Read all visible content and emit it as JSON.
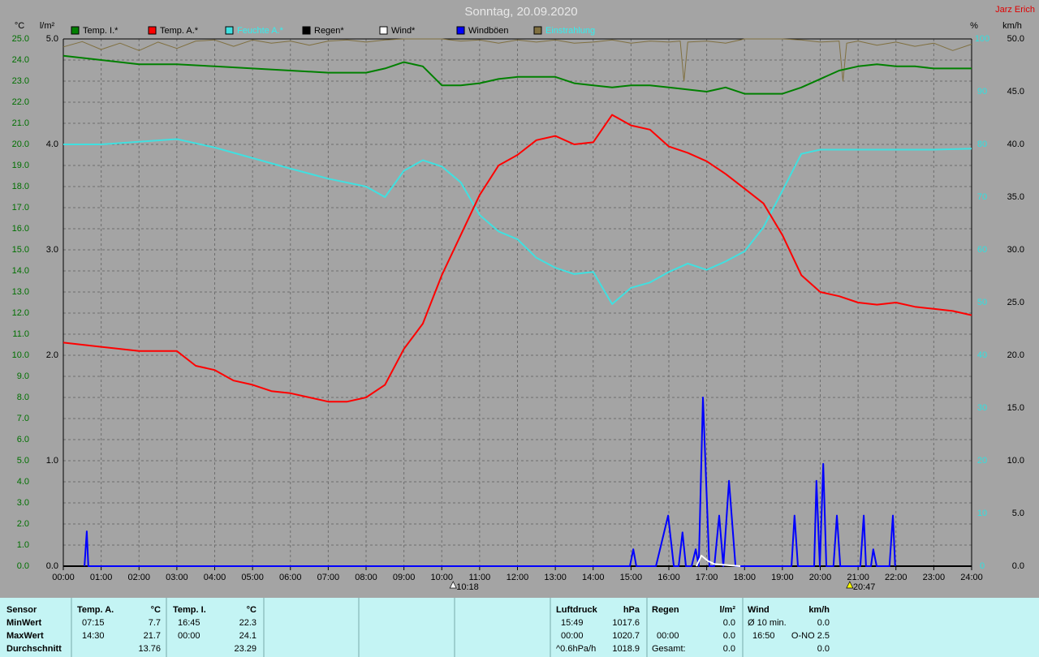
{
  "chart_data": {
    "type": "line",
    "title": "Sonntag, 20.09.2020",
    "author": "Jarz Erich",
    "ylabel": "°C",
    "y3label": "l/m²",
    "y2label": "%",
    "y4label": "km/h",
    "grid": true,
    "xlim": [
      0,
      24
    ],
    "xticks": [
      {
        "value": 0,
        "label": "00:00"
      },
      {
        "value": 1,
        "label": "01:00"
      },
      {
        "value": 2,
        "label": "02:00"
      },
      {
        "value": 3,
        "label": "03:00"
      },
      {
        "value": 4,
        "label": "04:00"
      },
      {
        "value": 5,
        "label": "05:00"
      },
      {
        "value": 6,
        "label": "06:00"
      },
      {
        "value": 7,
        "label": "07:00"
      },
      {
        "value": 8,
        "label": "08:00"
      },
      {
        "value": 9,
        "label": "09:00"
      },
      {
        "value": 10,
        "label": "10:00"
      },
      {
        "value": 11,
        "label": "11:00"
      },
      {
        "value": 12,
        "label": "12:00"
      },
      {
        "value": 13,
        "label": "13:00"
      },
      {
        "value": 14,
        "label": "14:00"
      },
      {
        "value": 15,
        "label": "15:00"
      },
      {
        "value": 16,
        "label": "16:00"
      },
      {
        "value": 17,
        "label": "17:00"
      },
      {
        "value": 18,
        "label": "18:00"
      },
      {
        "value": 19,
        "label": "19:00"
      },
      {
        "value": 20,
        "label": "20:00"
      },
      {
        "value": 21,
        "label": "21:00"
      },
      {
        "value": 22,
        "label": "22:00"
      },
      {
        "value": 23,
        "label": "23:00"
      },
      {
        "value": 24,
        "label": "24:00"
      }
    ],
    "ylim": [
      0,
      25
    ],
    "yticks": [
      {
        "value": 0,
        "label": "0.0"
      },
      {
        "value": 1,
        "label": "1.0"
      },
      {
        "value": 2,
        "label": "2.0"
      },
      {
        "value": 3,
        "label": "3.0"
      },
      {
        "value": 4,
        "label": "4.0"
      },
      {
        "value": 5,
        "label": "5.0"
      },
      {
        "value": 6,
        "label": "6.0"
      },
      {
        "value": 7,
        "label": "7.0"
      },
      {
        "value": 8,
        "label": "8.0"
      },
      {
        "value": 9,
        "label": "9.0"
      },
      {
        "value": 10,
        "label": "10.0"
      },
      {
        "value": 11,
        "label": "11.0"
      },
      {
        "value": 12,
        "label": "12.0"
      },
      {
        "value": 13,
        "label": "13.0"
      },
      {
        "value": 14,
        "label": "14.0"
      },
      {
        "value": 15,
        "label": "15.0"
      },
      {
        "value": 16,
        "label": "16.0"
      },
      {
        "value": 17,
        "label": "17.0"
      },
      {
        "value": 18,
        "label": "18.0"
      },
      {
        "value": 19,
        "label": "19.0"
      },
      {
        "value": 20,
        "label": "20.0"
      },
      {
        "value": 21,
        "label": "21.0"
      },
      {
        "value": 22,
        "label": "22.0"
      },
      {
        "value": 23,
        "label": "23.0"
      },
      {
        "value": 24,
        "label": "24.0"
      },
      {
        "value": 25,
        "label": "25.0"
      }
    ],
    "y3lim": [
      0,
      5
    ],
    "y3ticks": [
      {
        "value": 0,
        "label": "0.0"
      },
      {
        "value": 1,
        "label": "1.0"
      },
      {
        "value": 2,
        "label": "2.0"
      },
      {
        "value": 3,
        "label": "3.0"
      },
      {
        "value": 4,
        "label": "4.0"
      },
      {
        "value": 5,
        "label": "5.0"
      }
    ],
    "y2lim": [
      0,
      100
    ],
    "y2ticks": [
      0,
      10,
      20,
      30,
      40,
      50,
      60,
      70,
      80,
      90,
      100
    ],
    "y4lim": [
      0,
      50
    ],
    "y4ticks": [
      {
        "value": 0,
        "label": "0.0"
      },
      {
        "value": 5,
        "label": "5.0"
      },
      {
        "value": 10,
        "label": "10.0"
      },
      {
        "value": 15,
        "label": "15.0"
      },
      {
        "value": 20,
        "label": "20.0"
      },
      {
        "value": 25,
        "label": "25.0"
      },
      {
        "value": 30,
        "label": "30.0"
      },
      {
        "value": 35,
        "label": "35.0"
      },
      {
        "value": 40,
        "label": "40.0"
      },
      {
        "value": 45,
        "label": "45.0"
      },
      {
        "value": 50,
        "label": "50.0"
      }
    ],
    "series": [
      {
        "name": "Temp. I.*",
        "color": "#008000",
        "axis": "y",
        "x": [
          0,
          1,
          2,
          3,
          4,
          5,
          6,
          7,
          8,
          8.5,
          9,
          9.5,
          10,
          10.5,
          11,
          11.5,
          12,
          12.5,
          13,
          13.5,
          14,
          14.5,
          15,
          15.5,
          16,
          16.5,
          17,
          17.5,
          18,
          18.5,
          19,
          19.5,
          20,
          20.5,
          21,
          21.5,
          22,
          22.5,
          23,
          24
        ],
        "values": [
          24.2,
          24.0,
          23.8,
          23.8,
          23.7,
          23.6,
          23.5,
          23.4,
          23.4,
          23.6,
          23.9,
          23.7,
          22.8,
          22.8,
          22.9,
          23.1,
          23.2,
          23.2,
          23.2,
          22.9,
          22.8,
          22.7,
          22.8,
          22.8,
          22.7,
          22.6,
          22.5,
          22.7,
          22.4,
          22.4,
          22.4,
          22.7,
          23.1,
          23.5,
          23.7,
          23.8,
          23.7,
          23.7,
          23.6,
          23.6
        ]
      },
      {
        "name": "Temp. A.*",
        "color": "#ff0000",
        "axis": "y",
        "x": [
          0,
          1,
          2,
          3,
          3.5,
          4,
          4.5,
          5,
          5.5,
          6,
          6.5,
          7,
          7.5,
          8,
          8.5,
          9,
          9.5,
          10,
          10.5,
          11,
          11.5,
          12,
          12.5,
          13,
          13.5,
          14,
          14.5,
          15,
          15.5,
          16,
          16.5,
          17,
          17.5,
          18,
          18.5,
          19,
          19.5,
          20,
          20.5,
          21,
          21.5,
          22,
          22.5,
          23,
          23.5,
          24
        ],
        "values": [
          10.6,
          10.4,
          10.2,
          10.2,
          9.5,
          9.3,
          8.8,
          8.6,
          8.3,
          8.2,
          8.0,
          7.8,
          7.8,
          8.0,
          8.6,
          10.3,
          11.5,
          13.8,
          15.7,
          17.6,
          19.0,
          19.5,
          20.2,
          20.4,
          20.0,
          20.1,
          21.4,
          20.9,
          20.7,
          19.9,
          19.6,
          19.2,
          18.6,
          17.9,
          17.2,
          15.7,
          13.8,
          13.0,
          12.8,
          12.5,
          12.4,
          12.5,
          12.3,
          12.2,
          12.1,
          11.9
        ]
      },
      {
        "name": "Feuchte A.*",
        "color": "#40e0e0",
        "axis": "y2",
        "x": [
          0,
          1,
          2,
          3,
          4,
          5,
          6,
          7,
          8,
          8.5,
          9,
          9.5,
          10,
          10.5,
          11,
          11.5,
          12,
          12.5,
          13,
          13.5,
          14,
          14.5,
          15,
          15.5,
          16,
          16.5,
          17,
          17.5,
          18,
          18.5,
          19,
          19.5,
          20,
          21,
          22,
          23,
          24
        ],
        "values": [
          80,
          80,
          80.5,
          81,
          79.4,
          77.4,
          75.4,
          73.5,
          72,
          70,
          75,
          77,
          75.8,
          72.8,
          66.6,
          63.5,
          62,
          58.5,
          56.6,
          55.4,
          55.8,
          49.7,
          52.8,
          53.8,
          55.8,
          57.4,
          56.2,
          57.8,
          59.7,
          64.3,
          71.2,
          78.2,
          79,
          79,
          79,
          79,
          79.2
        ]
      },
      {
        "name": "Regen*",
        "color": "#000000",
        "axis": "y3",
        "x": [
          0,
          24
        ],
        "values": [
          0,
          0
        ]
      },
      {
        "name": "Wind*",
        "color": "#ffffff",
        "axis": "y4",
        "x": [
          16.73,
          16.86,
          17.03,
          17.2,
          17.89
        ],
        "values": [
          0,
          1.0,
          0.5,
          0.2,
          0
        ]
      },
      {
        "name": "Windböen",
        "color": "#0000ff",
        "axis": "y4",
        "x": [
          0.56,
          0.62,
          0.66,
          14.97,
          15.06,
          15.14,
          15.66,
          15.98,
          16.13,
          16.26,
          16.36,
          16.45,
          16.6,
          16.71,
          16.79,
          16.9,
          17.07,
          17.2,
          17.33,
          17.44,
          17.59,
          17.76,
          19.24,
          19.32,
          19.41,
          19.84,
          19.9,
          19.99,
          20.08,
          20.16,
          20.35,
          20.44,
          20.53,
          21.06,
          21.15,
          21.21,
          21.34,
          21.4,
          21.49,
          21.83,
          21.92,
          21.98
        ],
        "values": [
          0,
          3.3,
          0,
          0,
          1.6,
          0,
          0,
          4.8,
          0,
          0,
          3.2,
          0,
          0,
          1.6,
          0,
          16.0,
          0,
          0,
          4.8,
          0,
          8.1,
          0,
          0,
          4.8,
          0,
          0,
          8.1,
          0,
          9.7,
          0,
          0,
          4.8,
          0,
          0,
          4.8,
          0,
          0,
          1.6,
          0,
          0,
          4.8,
          0
        ]
      },
      {
        "name": "Einstrahlung",
        "color": "#807040",
        "axis": "y2",
        "x": [
          0,
          0.5,
          1,
          1.5,
          2,
          2.5,
          3,
          3.5,
          4,
          4.5,
          5,
          5.5,
          6,
          6.5,
          7,
          7.5,
          8,
          8.5,
          9,
          9.5,
          10,
          10.5,
          11,
          11.5,
          12,
          12.5,
          13,
          13.5,
          14,
          14.5,
          15,
          15.5,
          16,
          16.3,
          16.4,
          16.5,
          17,
          17.5,
          18,
          18.5,
          19,
          19.5,
          20,
          20.5,
          20.6,
          20.7,
          21,
          21.5,
          22,
          22.5,
          23,
          23.5,
          24
        ],
        "values": [
          98.5,
          99.5,
          98,
          99.2,
          97.8,
          99.4,
          98.2,
          99.6,
          99.8,
          98.6,
          99.8,
          99.2,
          99.6,
          98.8,
          99.6,
          99.8,
          99.4,
          99.8,
          100,
          100,
          100,
          99.6,
          99.8,
          99.2,
          99.8,
          99.4,
          99.8,
          99.2,
          99.4,
          99.8,
          99.2,
          99.6,
          99.4,
          99.6,
          92,
          99.4,
          99.6,
          99.2,
          100,
          100,
          100,
          99.8,
          99.4,
          99.6,
          92,
          99.2,
          99.6,
          98.8,
          99.4,
          98.6,
          99.2,
          97.8,
          99.0
        ]
      }
    ],
    "annotations": [
      {
        "label": "10:18",
        "x": 10.3
      },
      {
        "label": "20:47",
        "x": 20.78
      }
    ]
  },
  "summary": {
    "blocks": [
      {
        "header": [
          "Sensor"
        ],
        "rows": [
          [
            "MinWert"
          ],
          [
            "MaxWert"
          ],
          [
            "Durchschnitt"
          ]
        ]
      },
      {
        "header": [
          "Temp. A.",
          "°C"
        ],
        "rows": [
          [
            "07:15",
            "7.7"
          ],
          [
            "14:30",
            "21.7"
          ],
          [
            "13.76"
          ]
        ]
      },
      {
        "header": [
          "Temp. I.",
          "°C"
        ],
        "rows": [
          [
            "16:45",
            "22.3"
          ],
          [
            "00:00",
            "24.1"
          ],
          [
            "23.29"
          ]
        ]
      },
      {
        "header": [
          "Luftdruck",
          "hPa"
        ],
        "rows": [
          [
            "15:49",
            "1017.6"
          ],
          [
            "00:00",
            "1020.7"
          ],
          [
            "^0.6hPa/h",
            "1018.9"
          ]
        ]
      },
      {
        "header": [
          "Regen",
          "l/m²"
        ],
        "rows": [
          [
            "0.0"
          ],
          [
            "00:00",
            "0.0"
          ],
          [
            "Gesamt:",
            "0.0"
          ]
        ]
      },
      {
        "header": [
          "Wind",
          "km/h"
        ],
        "rows": [
          [
            "Ø 10 min.",
            "0.0"
          ],
          [
            "16:50",
            "O-NO 2.5"
          ],
          [
            "0.0"
          ]
        ]
      }
    ]
  }
}
